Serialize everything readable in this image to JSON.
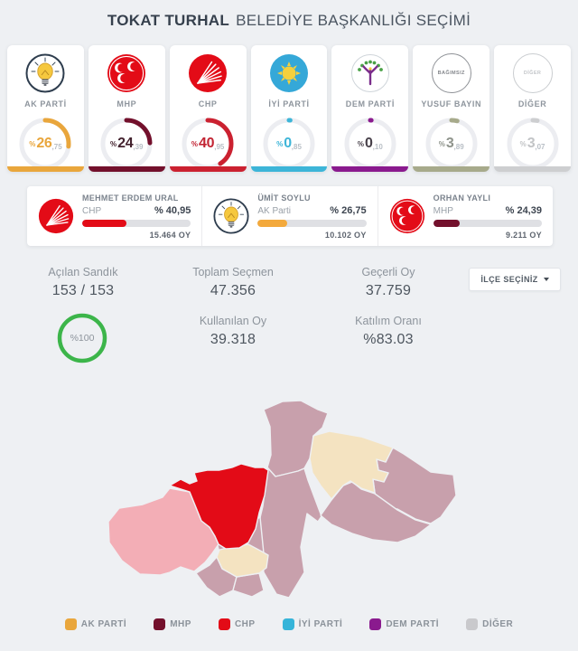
{
  "header": {
    "title_bold": "TOKAT TURHAL",
    "title_rest": "BELEDİYE BAŞKANLIĞI SEÇİMİ"
  },
  "parties": [
    {
      "name": "AK PARTİ",
      "icon": "akparti-logo",
      "pct_prefix": "%",
      "pct_int": "26",
      "pct_dec": ",75",
      "pct_value": 26.75,
      "color": "#e9a63c",
      "num_color": "#e9a63c"
    },
    {
      "name": "MHP",
      "icon": "mhp-logo",
      "pct_prefix": "%",
      "pct_int": "24",
      "pct_dec": ",39",
      "pct_value": 24.39,
      "color": "#73102c",
      "num_color": "#43222e"
    },
    {
      "name": "CHP",
      "icon": "chp-logo",
      "pct_prefix": "%",
      "pct_int": "40",
      "pct_dec": ",95",
      "pct_value": 40.95,
      "color": "#cb2130",
      "num_color": "#c22433"
    },
    {
      "name": "İYİ PARTİ",
      "icon": "iyiparti-logo",
      "pct_prefix": "%",
      "pct_int": "0",
      "pct_dec": ",85",
      "pct_value": 0.85,
      "color": "#3db5d8",
      "num_color": "#3db5d8"
    },
    {
      "name": "DEM PARTİ",
      "icon": "demparti-logo",
      "pct_prefix": "%",
      "pct_int": "0",
      "pct_dec": ",10",
      "pct_value": 0.1,
      "color": "#8a1a8e",
      "num_color": "#474049"
    },
    {
      "name": "YUSUF BAYIN",
      "icon": "bagimsiz-badge",
      "badge": "BAĞIMSIZ",
      "pct_prefix": "%",
      "pct_int": "3",
      "pct_dec": ",89",
      "pct_value": 3.89,
      "color": "#a7aa8b",
      "num_color": "#8f948c"
    },
    {
      "name": "DİĞER",
      "icon": "diger-badge",
      "badge": "DİĞER",
      "pct_prefix": "%",
      "pct_int": "3",
      "pct_dec": ",07",
      "pct_value": 3.07,
      "color": "#cdced0",
      "num_color": "#c2c4c6"
    }
  ],
  "candidates": [
    {
      "name": "MEHMET ERDEM URAL",
      "party": "CHP",
      "pct": "% 40,95",
      "pct_value": 40.95,
      "votes": "15.464 OY",
      "color": "#e30b17",
      "icon": "chp-logo"
    },
    {
      "name": "ÜMİT SOYLU",
      "party": "AK Parti",
      "pct": "% 26,75",
      "pct_value": 26.75,
      "votes": "10.102 OY",
      "color": "#f3a93c",
      "icon": "akparti-logo"
    },
    {
      "name": "ORHAN YAYLI",
      "party": "MHP",
      "pct": "% 24,39",
      "pct_value": 24.39,
      "votes": "9.211 OY",
      "color": "#73102c",
      "icon": "mhp-logo"
    }
  ],
  "stats": {
    "acilan_sandik_label": "Açılan Sandık",
    "acilan_sandik_value": "153 / 153",
    "sandik_progress": "%100",
    "progress_color": "#3cb54a",
    "toplam_secmen_label": "Toplam Seçmen",
    "toplam_secmen_value": "47.356",
    "gecerli_oy_label": "Geçerli Oy",
    "gecerli_oy_value": "37.759",
    "kullanilan_oy_label": "Kullanılan Oy",
    "kullanilan_oy_value": "39.318",
    "katilim_orani_label": "Katılım Oranı",
    "katilim_orani_value": "%83.03",
    "ilce_select_label": "İLÇE SEÇİNİZ"
  },
  "legend": [
    {
      "label": "AK PARTİ",
      "color": "#e9a63c"
    },
    {
      "label": "MHP",
      "color": "#73102c"
    },
    {
      "label": "CHP",
      "color": "#e30b17"
    },
    {
      "label": "İYİ PARTİ",
      "color": "#35b4d9"
    },
    {
      "label": "DEM PARTİ",
      "color": "#8a1a8e"
    },
    {
      "label": "DİĞER",
      "color": "#c9c9cc"
    }
  ],
  "map": {
    "region_colors": {
      "mauve": "#c8a0ac",
      "cream": "#f4e3c1",
      "red": "#e30b17",
      "pink": "#f3aeb6"
    }
  }
}
